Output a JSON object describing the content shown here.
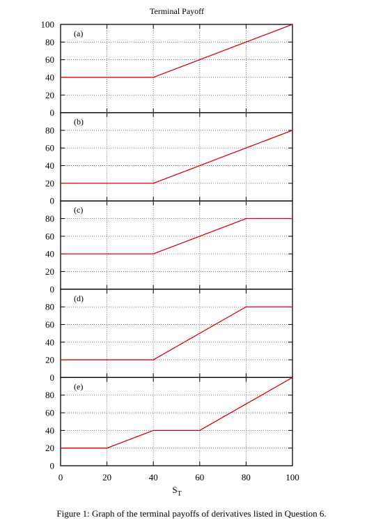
{
  "chart_data": {
    "type": "line",
    "title": "Terminal Payoff",
    "xlabel": "S",
    "xlabel_subscript": "T",
    "xlim": [
      0,
      100
    ],
    "x_ticks": [
      0,
      20,
      40,
      60,
      80,
      100
    ],
    "grid": true,
    "line_color": "#e00000",
    "panels": [
      {
        "label": "(a)",
        "ylim": [
          0,
          100
        ],
        "y_ticks": [
          0,
          20,
          40,
          60,
          80,
          100
        ],
        "points": [
          [
            0,
            40
          ],
          [
            40,
            40
          ],
          [
            100,
            100
          ]
        ]
      },
      {
        "label": "(b)",
        "ylim": [
          0,
          100
        ],
        "y_ticks": [
          0,
          20,
          40,
          60,
          80
        ],
        "points": [
          [
            0,
            20
          ],
          [
            40,
            20
          ],
          [
            100,
            80
          ]
        ]
      },
      {
        "label": "(c)",
        "ylim": [
          0,
          100
        ],
        "y_ticks": [
          0,
          20,
          40,
          60,
          80
        ],
        "points": [
          [
            0,
            40
          ],
          [
            40,
            40
          ],
          [
            80,
            80
          ],
          [
            100,
            80
          ]
        ]
      },
      {
        "label": "(d)",
        "ylim": [
          0,
          100
        ],
        "y_ticks": [
          0,
          20,
          40,
          60,
          80
        ],
        "points": [
          [
            0,
            20
          ],
          [
            40,
            20
          ],
          [
            80,
            80
          ],
          [
            100,
            80
          ]
        ]
      },
      {
        "label": "(e)",
        "ylim": [
          0,
          100
        ],
        "y_ticks": [
          0,
          20,
          40,
          60,
          80
        ],
        "points": [
          [
            0,
            20
          ],
          [
            20,
            20
          ],
          [
            40,
            40
          ],
          [
            60,
            40
          ],
          [
            100,
            100
          ]
        ]
      }
    ]
  },
  "caption": "Figure 1: Graph of the terminal payoffs of derivatives listed in Question 6."
}
